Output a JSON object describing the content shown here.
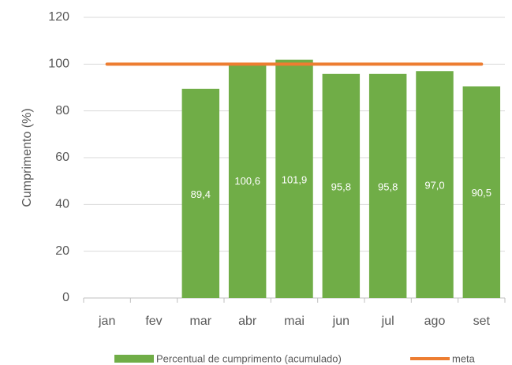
{
  "chart_data": {
    "type": "bar",
    "y_label": "Cumprimento (%)",
    "categories": [
      "jan",
      "fev",
      "mar",
      "abr",
      "mai",
      "jun",
      "jul",
      "ago",
      "set"
    ],
    "series": [
      {
        "name": "Percentual de cumprimento (acumulado)",
        "type": "bar",
        "color": "#70ad47",
        "values": [
          null,
          null,
          89.4,
          100.6,
          101.9,
          95.8,
          95.8,
          97.0,
          90.5
        ],
        "value_labels": [
          null,
          null,
          "89,4",
          "100,6",
          "101,9",
          "95,8",
          "95,8",
          "97,0",
          "90,5"
        ]
      },
      {
        "name": "meta",
        "type": "line",
        "color": "#ed7d31",
        "values": [
          100,
          100,
          100,
          100,
          100,
          100,
          100,
          100,
          100
        ]
      }
    ],
    "ylim": [
      0,
      120
    ],
    "yticks": [
      0,
      20,
      40,
      60,
      80,
      100,
      120
    ],
    "grid": true,
    "legend": "bottom"
  }
}
